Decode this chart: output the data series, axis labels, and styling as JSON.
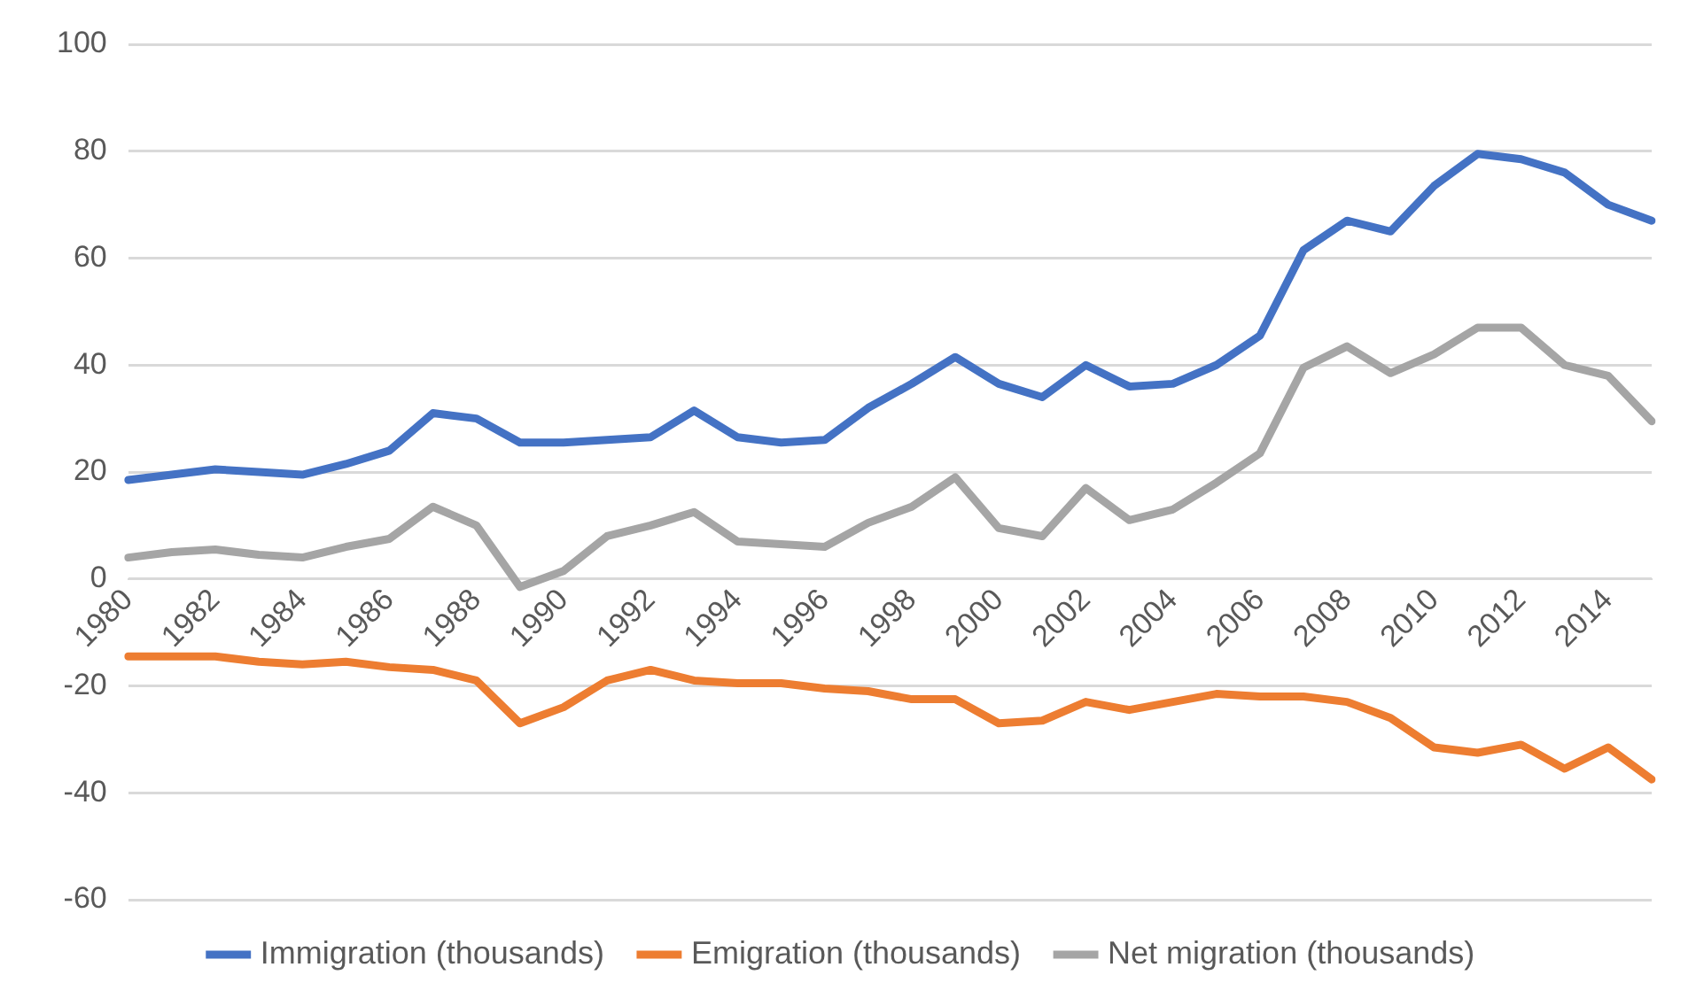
{
  "chart_data": {
    "type": "line",
    "categories": [
      "1980",
      null,
      "1982",
      null,
      "1984",
      null,
      "1986",
      null,
      "1988",
      null,
      "1990",
      null,
      "1992",
      null,
      "1994",
      null,
      "1996",
      null,
      "1998",
      null,
      "2000",
      null,
      "2002",
      null,
      "2004",
      null,
      "2006",
      null,
      "2008",
      null,
      "2010",
      null,
      "2012",
      null,
      "2014",
      null
    ],
    "series": [
      {
        "name": "Immigration (thousands)",
        "color": "#4472c4",
        "values": [
          18.5,
          19.5,
          20.5,
          20,
          19.5,
          21.5,
          24,
          31,
          30,
          25.5,
          25.5,
          26,
          26.5,
          31.5,
          26.5,
          25.5,
          26,
          32,
          36.5,
          41.5,
          36.5,
          34,
          40,
          36,
          36.5,
          40,
          45.5,
          61.5,
          67,
          65,
          73.5,
          79.5,
          78.5,
          76,
          70,
          67
        ]
      },
      {
        "name": "Emigration (thousands)",
        "color": "#ed7d31",
        "values": [
          -14.5,
          -14.5,
          -14.5,
          -15.5,
          -16,
          -15.5,
          -16.5,
          -17,
          -19,
          -27,
          -24,
          -19,
          -17,
          -19,
          -19.5,
          -19.5,
          -20.5,
          -21,
          -22.5,
          -22.5,
          -27,
          -26.5,
          -23,
          -24.5,
          -23,
          -21.5,
          -22,
          -22,
          -23,
          -26,
          -31.5,
          -32.5,
          -31,
          -35.5,
          -31.5,
          -37.5
        ]
      },
      {
        "name": "Net migration (thousands)",
        "color": "#a5a5a5",
        "values": [
          4,
          5,
          5.5,
          4.5,
          4,
          6,
          7.5,
          13.5,
          10,
          -1.5,
          1.5,
          8,
          10,
          12.5,
          7,
          6.5,
          6,
          10.5,
          13.5,
          19,
          9.5,
          8,
          17,
          11,
          13,
          18,
          23.5,
          39.5,
          43.5,
          38.5,
          42,
          47,
          47,
          40,
          38,
          29.5
        ]
      }
    ],
    "ylim": [
      -60,
      100
    ],
    "yticks": [
      -60,
      -40,
      -20,
      0,
      20,
      40,
      60,
      80,
      100
    ],
    "grid": "y",
    "legend": "bottom",
    "marker": "none",
    "line_style": "solid"
  }
}
